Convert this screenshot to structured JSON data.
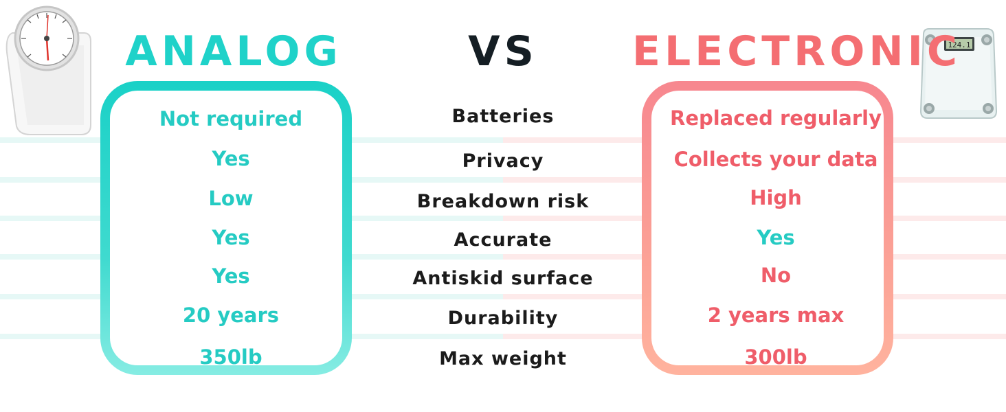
{
  "header": {
    "left_title": "ANALOG",
    "center_title": "VS",
    "right_title": "ELECTRONIC"
  },
  "icons": {
    "left": "analog-scale-icon",
    "right": "electronic-scale-icon"
  },
  "electronic_display": "124.1",
  "colors": {
    "analog_accent": "#1fd2c9",
    "electronic_accent": "#f46e72",
    "vs_color": "#151e24"
  },
  "features": [
    "Batteries",
    "Privacy",
    "Breakdown risk",
    "Accurate",
    "Antiskid surface",
    "Durability",
    "Max weight"
  ],
  "analog": [
    "Not required",
    "Yes",
    "Low",
    "Yes",
    "Yes",
    "20 years",
    "350lb"
  ],
  "electronic": [
    "Replaced regularly",
    "Collects your data",
    "High",
    "Yes",
    "No",
    "2 years max",
    "300lb"
  ]
}
